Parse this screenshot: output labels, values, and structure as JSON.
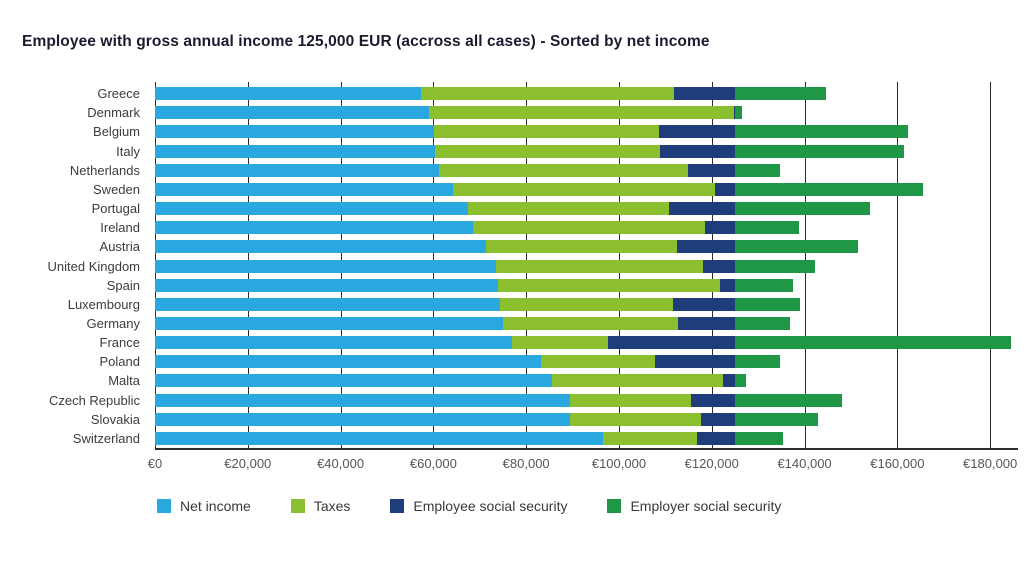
{
  "chart_data": {
    "type": "bar",
    "orientation": "horizontal-stacked",
    "title": "Employee with gross annual income 125,000 EUR  (accross all cases) - Sorted by net income",
    "categories": [
      "Greece",
      "Denmark",
      "Belgium",
      "Italy",
      "Netherlands",
      "Sweden",
      "Portugal",
      "Ireland",
      "Austria",
      "United Kingdom",
      "Spain",
      "Luxembourg",
      "Germany",
      "France",
      "Poland",
      "Malta",
      "Czech Republic",
      "Slovakia",
      "Switzerland"
    ],
    "series": [
      {
        "name": "Net income",
        "color": "#29A8DF",
        "values": [
          57400,
          59000,
          60100,
          60400,
          61300,
          64300,
          67500,
          68500,
          71300,
          73600,
          74000,
          74400,
          75100,
          77000,
          83300,
          85500,
          89400,
          89500,
          96500
        ]
      },
      {
        "name": "Taxes",
        "color": "#8CBF2F",
        "values": [
          54500,
          65800,
          48600,
          48400,
          53600,
          56500,
          43300,
          50000,
          41300,
          44600,
          47800,
          37300,
          37700,
          20700,
          24500,
          36900,
          26100,
          28200,
          20400
        ]
      },
      {
        "name": "Employee social security",
        "color": "#1F3D7A",
        "values": [
          13100,
          200,
          16300,
          16200,
          10100,
          4200,
          14200,
          6500,
          12400,
          6800,
          3200,
          13300,
          12200,
          27300,
          17200,
          2600,
          9500,
          7300,
          8100
        ]
      },
      {
        "name": "Employer social security",
        "color": "#1F9747",
        "values": [
          19600,
          1500,
          37400,
          36500,
          9700,
          40600,
          29100,
          13800,
          26600,
          17200,
          12600,
          14000,
          11900,
          59500,
          9700,
          2400,
          23000,
          18000,
          10400
        ]
      }
    ],
    "axis": {
      "x_max": 186000,
      "ticks": [
        {
          "value": 0,
          "label": "€0"
        },
        {
          "value": 20000,
          "label": "€20,000"
        },
        {
          "value": 40000,
          "label": "€40,000"
        },
        {
          "value": 60000,
          "label": "€60,000"
        },
        {
          "value": 80000,
          "label": "€80,000"
        },
        {
          "value": 100000,
          "label": "€100,000"
        },
        {
          "value": 120000,
          "label": "€120,000"
        },
        {
          "value": 140000,
          "label": "€140,000"
        },
        {
          "value": 160000,
          "label": "€160,000"
        },
        {
          "value": 180000,
          "label": "€180,000"
        }
      ],
      "grid": true
    },
    "legend_position": "bottom",
    "gross_income_eur": 125000
  }
}
